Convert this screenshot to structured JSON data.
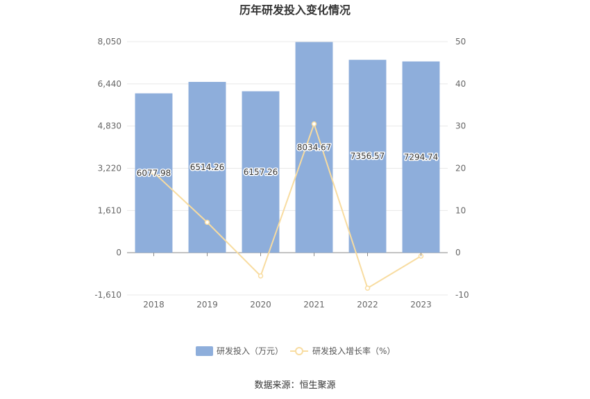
{
  "chart_data": {
    "type": "bar",
    "title": "历年研发投入变化情况",
    "categories": [
      "2018",
      "2019",
      "2020",
      "2021",
      "2022",
      "2023"
    ],
    "series": [
      {
        "name": "研发投入（万元）",
        "type": "bar",
        "axis": "left",
        "color": "#8eaedb",
        "values": [
          6077.98,
          6514.26,
          6157.26,
          8034.67,
          7356.57,
          7294.74
        ],
        "labels": [
          "6077.98",
          "6514.26",
          "6157.26",
          "8034.67",
          "7356.57",
          "7294.74"
        ]
      },
      {
        "name": "研发投入增长率（%）",
        "type": "line",
        "axis": "right",
        "color": "#f8dca0",
        "values": [
          19.0,
          7.2,
          -5.5,
          30.5,
          -8.4,
          -0.8
        ]
      }
    ],
    "left_axis": {
      "ylim": [
        -1610,
        8050
      ],
      "ticks": [
        8050,
        6440,
        4830,
        3220,
        1610,
        0,
        -1610
      ],
      "tick_labels": [
        "8,050",
        "6,440",
        "4,830",
        "3,220",
        "1,610",
        "0",
        "-1,610"
      ]
    },
    "right_axis": {
      "ylim": [
        -10,
        50
      ],
      "ticks": [
        50,
        40,
        30,
        20,
        10,
        0,
        -10
      ],
      "tick_labels": [
        "50",
        "40",
        "30",
        "20",
        "10",
        "0",
        "-10"
      ]
    },
    "grid": true,
    "legend_position": "bottom",
    "source": "数据来源：恒生聚源"
  }
}
